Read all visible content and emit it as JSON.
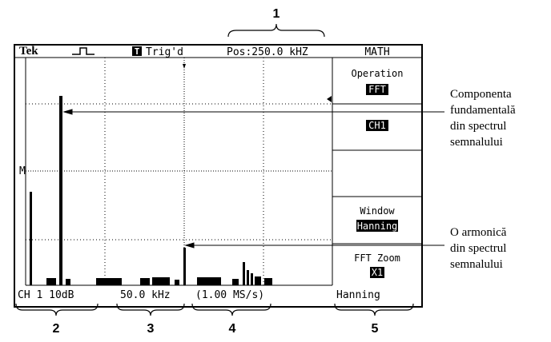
{
  "header": {
    "brand": "Tek",
    "trigger_badge": "T",
    "trigger": "Trig'd",
    "position": "Pos:250.0 kHZ",
    "menu_title": "MATH"
  },
  "menu": {
    "operation_label": "Operation",
    "operation_value": "FFT",
    "source_value": "CH1",
    "window_label": "Window",
    "window_value": "Hanning",
    "zoom_label": "FFT Zoom",
    "zoom_value": "X1"
  },
  "marker": "M",
  "status": {
    "scale": "CH 1 10dB",
    "frequency": "50.0 kHz",
    "sample_rate": "(1.00 MS/s)",
    "window": "Hanning"
  },
  "callouts": [
    "1",
    "2",
    "3",
    "4",
    "5"
  ],
  "annotations": {
    "fundamental": [
      "Componenta",
      "fundamentală",
      "din spectrul",
      "semnalului"
    ],
    "harmonic": [
      "O armonică",
      "din spectrul",
      "semnalului"
    ]
  }
}
